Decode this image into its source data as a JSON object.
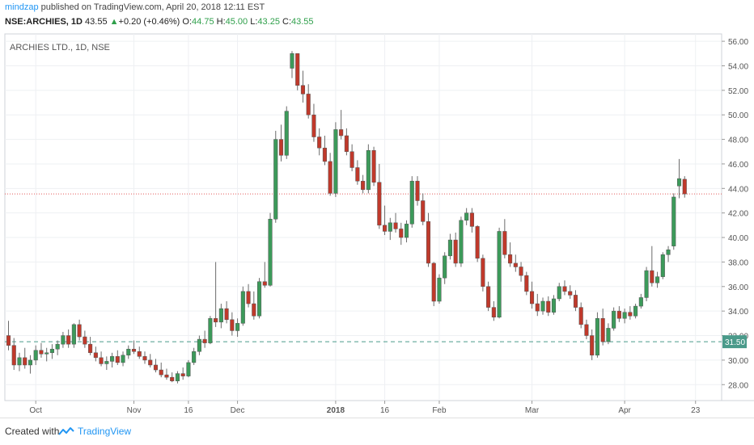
{
  "header": {
    "author": "mindzap",
    "published_text": " published on TradingView.com, April 20, 2018 12:11 EST",
    "symbol": "NSE:ARCHIES, 1D",
    "last": "43.55",
    "change": "+0.20 (+0.46%)",
    "o_label": "O:",
    "o_value": "44.75",
    "h_label": "H:",
    "h_value": "45.00",
    "l_label": "L:",
    "l_value": "43.25",
    "c_label": "C:",
    "c_value": "43.55"
  },
  "footer": {
    "created_with": "Created with",
    "brand": "TradingView"
  },
  "colors": {
    "up": "#3c9a5a",
    "down": "#c0392b",
    "grid": "#eef0f3",
    "price_line": "#e35b5b",
    "hline": "#4a9a8a"
  },
  "chart_data": {
    "type": "candlestick",
    "title": "ARCHIES LTD., 1D, NSE",
    "ylim": [
      26.7,
      56.6
    ],
    "y_ticks": [
      "28.00",
      "30.00",
      "32.00",
      "34.00",
      "36.00",
      "38.00",
      "40.00",
      "42.00",
      "44.00",
      "46.00",
      "48.00",
      "50.00",
      "52.00",
      "54.00",
      "56.00"
    ],
    "x_labels": [
      {
        "label": "Oct",
        "bar": 5
      },
      {
        "label": "Nov",
        "bar": 23
      },
      {
        "label": "16",
        "bar": 33
      },
      {
        "label": "Dec",
        "bar": 42
      },
      {
        "label": "2018",
        "bar": 60,
        "bold": true
      },
      {
        "label": "16",
        "bar": 69
      },
      {
        "label": "Feb",
        "bar": 79
      },
      {
        "label": "Mar",
        "bar": 96
      },
      {
        "label": "Apr",
        "bar": 113
      },
      {
        "label": "23",
        "bar": 126
      }
    ],
    "current_price": 43.55,
    "horizontal_line": {
      "value": 31.5,
      "label": "31.50"
    },
    "candles": [
      [
        32.0,
        33.2,
        30.8,
        31.2
      ],
      [
        31.2,
        31.8,
        29.2,
        29.6
      ],
      [
        29.6,
        30.6,
        29.1,
        30.2
      ],
      [
        30.2,
        31.0,
        29.3,
        29.6
      ],
      [
        29.6,
        30.4,
        28.9,
        30.0
      ],
      [
        30.0,
        31.2,
        29.6,
        30.8
      ],
      [
        30.8,
        31.4,
        30.2,
        30.5
      ],
      [
        30.5,
        31.0,
        29.9,
        30.6
      ],
      [
        30.6,
        31.3,
        30.1,
        30.9
      ],
      [
        30.9,
        31.6,
        30.4,
        31.3
      ],
      [
        31.3,
        32.3,
        31.0,
        32.0
      ],
      [
        32.0,
        32.5,
        31.0,
        31.3
      ],
      [
        31.3,
        33.0,
        31.0,
        32.9
      ],
      [
        32.9,
        33.3,
        31.6,
        31.9
      ],
      [
        31.9,
        32.4,
        31.0,
        31.3
      ],
      [
        31.3,
        31.9,
        30.4,
        30.6
      ],
      [
        30.6,
        31.1,
        29.9,
        30.2
      ],
      [
        30.2,
        30.7,
        29.5,
        29.7
      ],
      [
        29.7,
        30.3,
        29.2,
        29.9
      ],
      [
        29.9,
        30.6,
        29.4,
        30.3
      ],
      [
        30.3,
        30.8,
        29.6,
        29.8
      ],
      [
        29.8,
        30.7,
        29.5,
        30.4
      ],
      [
        30.4,
        31.2,
        30.1,
        30.9
      ],
      [
        30.9,
        31.6,
        30.5,
        30.7
      ],
      [
        30.7,
        31.1,
        30.1,
        30.3
      ],
      [
        30.3,
        30.7,
        29.7,
        30.0
      ],
      [
        30.0,
        30.5,
        29.4,
        29.6
      ],
      [
        29.6,
        30.1,
        29.0,
        29.2
      ],
      [
        29.2,
        29.8,
        28.6,
        28.8
      ],
      [
        28.8,
        29.3,
        28.4,
        28.6
      ],
      [
        28.6,
        29.0,
        28.2,
        28.3
      ],
      [
        28.3,
        29.1,
        28.1,
        28.9
      ],
      [
        28.9,
        29.4,
        28.4,
        28.7
      ],
      [
        28.7,
        30.0,
        28.6,
        29.8
      ],
      [
        29.8,
        31.0,
        29.6,
        30.7
      ],
      [
        30.7,
        32.0,
        30.4,
        31.7
      ],
      [
        31.7,
        32.4,
        31.0,
        31.4
      ],
      [
        31.4,
        33.6,
        31.3,
        33.4
      ],
      [
        33.4,
        38.0,
        32.7,
        33.1
      ],
      [
        33.1,
        34.6,
        32.6,
        34.2
      ],
      [
        34.2,
        34.8,
        33.0,
        33.3
      ],
      [
        33.3,
        33.9,
        32.0,
        32.4
      ],
      [
        32.4,
        33.4,
        31.9,
        33.0
      ],
      [
        33.0,
        36.0,
        32.8,
        35.6
      ],
      [
        35.6,
        36.2,
        34.3,
        34.6
      ],
      [
        34.6,
        35.6,
        33.3,
        33.6
      ],
      [
        33.6,
        36.7,
        33.4,
        36.4
      ],
      [
        36.4,
        38.0,
        35.9,
        36.1
      ],
      [
        36.1,
        42.0,
        36.0,
        41.5
      ],
      [
        41.5,
        48.7,
        41.2,
        48.0
      ],
      [
        48.0,
        49.2,
        46.2,
        46.7
      ],
      [
        46.7,
        50.7,
        46.4,
        50.3
      ],
      [
        53.8,
        55.2,
        53.0,
        55.0
      ],
      [
        55.0,
        55.0,
        52.0,
        52.4
      ],
      [
        52.4,
        53.6,
        51.0,
        51.7
      ],
      [
        51.7,
        52.5,
        49.7,
        50.0
      ],
      [
        50.0,
        50.9,
        47.8,
        48.2
      ],
      [
        48.2,
        48.9,
        46.7,
        47.3
      ],
      [
        47.3,
        48.3,
        45.9,
        46.2
      ],
      [
        46.2,
        46.9,
        43.4,
        43.6
      ],
      [
        43.6,
        49.4,
        43.3,
        48.8
      ],
      [
        48.8,
        50.4,
        48.0,
        48.3
      ],
      [
        48.3,
        48.9,
        46.7,
        47.0
      ],
      [
        47.0,
        47.6,
        45.4,
        45.7
      ],
      [
        45.7,
        46.3,
        44.3,
        44.6
      ],
      [
        44.6,
        45.1,
        43.6,
        43.9
      ],
      [
        43.9,
        47.6,
        43.6,
        47.1
      ],
      [
        47.1,
        47.4,
        44.2,
        44.5
      ],
      [
        44.5,
        46.0,
        40.7,
        41.0
      ],
      [
        41.0,
        42.6,
        40.2,
        40.5
      ],
      [
        40.5,
        41.6,
        39.8,
        41.2
      ],
      [
        41.2,
        42.0,
        40.4,
        40.7
      ],
      [
        40.7,
        41.2,
        39.4,
        40.0
      ],
      [
        40.0,
        41.4,
        39.6,
        41.1
      ],
      [
        41.1,
        45.0,
        40.8,
        44.6
      ],
      [
        44.6,
        45.0,
        42.6,
        43.0
      ],
      [
        43.0,
        43.6,
        41.0,
        41.3
      ],
      [
        41.3,
        42.0,
        37.6,
        37.9
      ],
      [
        37.9,
        38.0,
        34.4,
        34.8
      ],
      [
        34.8,
        37.0,
        34.6,
        36.7
      ],
      [
        36.7,
        38.8,
        36.2,
        38.5
      ],
      [
        38.5,
        40.3,
        38.2,
        39.8
      ],
      [
        39.8,
        40.4,
        37.6,
        37.9
      ],
      [
        37.9,
        41.7,
        37.6,
        41.4
      ],
      [
        41.4,
        42.4,
        41.0,
        42.0
      ],
      [
        42.0,
        42.4,
        40.4,
        40.9
      ],
      [
        40.9,
        41.0,
        38.0,
        38.3
      ],
      [
        38.3,
        38.6,
        35.6,
        36.0
      ],
      [
        36.0,
        36.4,
        34.0,
        34.3
      ],
      [
        34.3,
        34.8,
        33.2,
        33.5
      ],
      [
        33.5,
        40.8,
        33.4,
        40.5
      ],
      [
        40.5,
        41.5,
        38.3,
        38.6
      ],
      [
        38.6,
        39.6,
        37.6,
        37.9
      ],
      [
        37.9,
        38.6,
        37.2,
        37.6
      ],
      [
        37.6,
        38.0,
        36.4,
        36.9
      ],
      [
        36.9,
        37.2,
        35.3,
        35.6
      ],
      [
        35.6,
        36.4,
        34.2,
        34.6
      ],
      [
        34.6,
        35.4,
        33.6,
        34.0
      ],
      [
        34.0,
        35.1,
        33.7,
        34.8
      ],
      [
        34.8,
        35.2,
        33.6,
        33.9
      ],
      [
        33.9,
        35.3,
        33.7,
        35.0
      ],
      [
        35.0,
        36.3,
        34.8,
        36.0
      ],
      [
        36.0,
        36.5,
        35.3,
        35.6
      ],
      [
        35.6,
        36.1,
        35.0,
        35.3
      ],
      [
        35.3,
        35.7,
        34.0,
        34.3
      ],
      [
        34.3,
        34.7,
        32.6,
        32.9
      ],
      [
        32.9,
        33.3,
        31.7,
        32.0
      ],
      [
        32.0,
        32.5,
        30.0,
        30.4
      ],
      [
        30.4,
        33.9,
        30.2,
        33.4
      ],
      [
        33.4,
        34.2,
        31.2,
        31.5
      ],
      [
        31.5,
        33.0,
        31.3,
        32.6
      ],
      [
        32.6,
        34.3,
        32.4,
        34.0
      ],
      [
        34.0,
        34.4,
        33.1,
        33.4
      ],
      [
        33.4,
        34.2,
        33.0,
        33.9
      ],
      [
        33.9,
        34.4,
        33.3,
        33.6
      ],
      [
        33.6,
        34.6,
        33.4,
        34.4
      ],
      [
        34.4,
        35.4,
        34.2,
        35.1
      ],
      [
        35.1,
        37.6,
        34.8,
        37.3
      ],
      [
        37.3,
        39.3,
        36.0,
        36.3
      ],
      [
        36.3,
        37.2,
        35.9,
        36.8
      ],
      [
        36.8,
        38.8,
        36.6,
        38.6
      ],
      [
        38.6,
        39.3,
        38.0,
        39.0
      ],
      [
        39.3,
        43.6,
        39.0,
        43.3
      ],
      [
        44.2,
        46.4,
        43.2,
        44.8
      ],
      [
        44.75,
        45.0,
        43.25,
        43.55
      ]
    ]
  }
}
